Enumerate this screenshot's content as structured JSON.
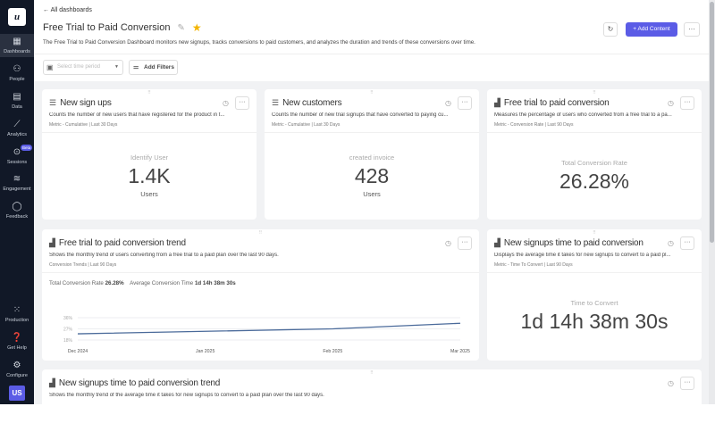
{
  "sidebar": {
    "logo": "u",
    "items": [
      {
        "label": "Dashboards",
        "icon": "grid-icon",
        "active": true
      },
      {
        "label": "People",
        "icon": "people-icon"
      },
      {
        "label": "Data",
        "icon": "data-icon"
      },
      {
        "label": "Analytics",
        "icon": "analytics-icon"
      },
      {
        "label": "Sessions",
        "icon": "play-icon",
        "badge": "Beta"
      },
      {
        "label": "Engagement",
        "icon": "layers-icon"
      },
      {
        "label": "Feedback",
        "icon": "chat-icon"
      }
    ],
    "bottom": [
      {
        "label": "Production",
        "icon": "apps-icon"
      },
      {
        "label": "Get Help",
        "icon": "help-icon"
      },
      {
        "label": "Configure",
        "icon": "gear-icon"
      }
    ],
    "avatar": "US"
  },
  "header": {
    "back": "All dashboards",
    "title": "Free Trial to Paid Conversion",
    "description": "The Free Trial to Paid Conversion Dashboard monitors new signups, tracks conversions to paid customers, and analyzes the duration and trends of these conversions over time.",
    "add_content": "+ Add Content",
    "more": "···"
  },
  "filters": {
    "time_placeholder": "Select time period",
    "add_filters": "Add Filters"
  },
  "cards": [
    {
      "title": "New sign ups",
      "description": "Counts the number of new users that have registered for the product in t...",
      "meta": "Metric - Cumulative | Last 30 Days",
      "label": "Identify User",
      "value": "1.4K",
      "unit": "Users"
    },
    {
      "title": "New customers",
      "description": "Counts the number of new trial signups that have converted to paying cu...",
      "meta": "Metric - Cumulative | Last 30 Days",
      "label": "created invoice",
      "value": "428",
      "unit": "Users"
    },
    {
      "title": "Free trial to paid conversion",
      "description": "Measures the percentage of users who converted from a free trial to a pa...",
      "meta": "Metric - Conversion Rate | Last 90 Days",
      "label": "Total Conversion Rate",
      "value": "26.28%"
    },
    {
      "title": "Free trial to paid conversion trend",
      "description": "Shows the monthly trend of users converting from a free trial to a paid plan over the last 90 days.",
      "meta": "Conversion Trends | Last 90 Days",
      "stat1_label": "Total Conversion Rate",
      "stat1_value": "26.28%",
      "stat2_label": "Average Conversion Time",
      "stat2_value": "1d 14h 38m 30s"
    },
    {
      "title": "New signups time to paid conversion",
      "description": "Displays the average time it takes for new signups to convert to a paid pl...",
      "meta": "Metric - Time To Convert | Last 90 Days",
      "label": "Time to Convert",
      "value": "1d 14h 38m 30s"
    },
    {
      "title": "New signups time to paid conversion trend",
      "description": "Shows the monthly trend of the average time it takes for new signups to convert to a paid plan over the last 90 days."
    }
  ],
  "chart_data": {
    "type": "line",
    "x": [
      "Dec 2024",
      "Jan 2025",
      "Feb 2025",
      "Mar 2025"
    ],
    "values": [
      23,
      25,
      27,
      31.5
    ],
    "yticks": [
      "36%",
      "27%",
      "18%"
    ],
    "ylim": [
      18,
      36
    ],
    "color": "#4a6a9a",
    "grid": true
  }
}
